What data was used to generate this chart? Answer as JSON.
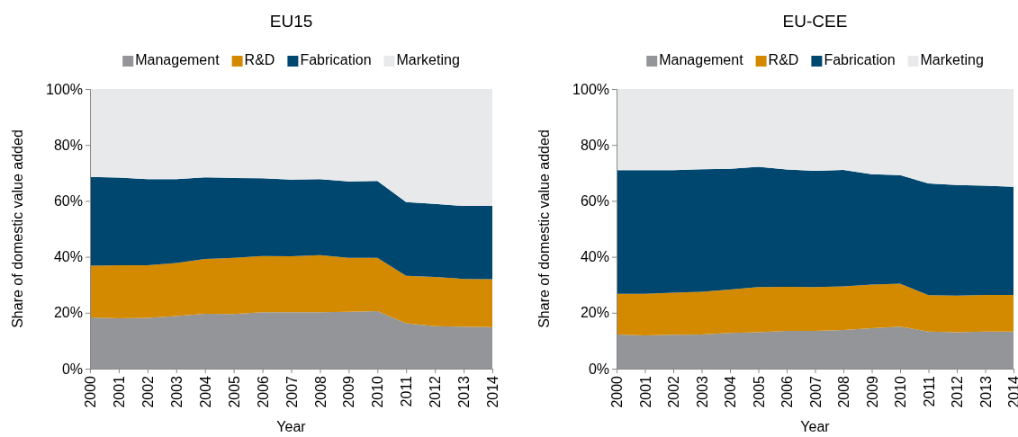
{
  "chart_data": [
    {
      "type": "area",
      "title": "EU15",
      "xlabel": "Year",
      "ylabel": "Share of domestic value added",
      "stacked": true,
      "legend": "top",
      "grid": false,
      "categories": [
        "2000",
        "2001",
        "2002",
        "2003",
        "2004",
        "2005",
        "2006",
        "2007",
        "2008",
        "2009",
        "2010",
        "2011",
        "2012",
        "2013",
        "2014"
      ],
      "ylim": [
        0,
        100
      ],
      "yticks": [
        {
          "value": 0,
          "label": "0%"
        },
        {
          "value": 20,
          "label": "20%"
        },
        {
          "value": 40,
          "label": "40%"
        },
        {
          "value": 60,
          "label": "60%"
        },
        {
          "value": 80,
          "label": "80%"
        },
        {
          "value": 100,
          "label": "100%"
        }
      ],
      "series": [
        {
          "name": "Management",
          "color": "#939598",
          "values": [
            18.3,
            18,
            18.2,
            18.8,
            19.6,
            19.5,
            20.2,
            20.2,
            20.2,
            20.3,
            20.6,
            16.2,
            15.2,
            15,
            14.9
          ]
        },
        {
          "name": "R&D",
          "color": "#d48a00",
          "values": [
            18.5,
            19,
            18.8,
            19,
            19.6,
            20.1,
            20.1,
            20,
            20.4,
            19.3,
            19,
            17,
            17.6,
            17.1,
            17.1
          ]
        },
        {
          "name": "Fabrication",
          "color": "#00476f",
          "values": [
            31.8,
            31.3,
            30.8,
            30,
            29.2,
            28.6,
            27.8,
            27.4,
            27.2,
            27.4,
            27.5,
            26.4,
            26.1,
            26.1,
            26.2
          ]
        },
        {
          "name": "Marketing",
          "color": "#e8e9eb",
          "values": [
            31.4,
            31.7,
            32.2,
            32.2,
            31.6,
            31.8,
            31.9,
            32.4,
            32.2,
            33,
            32.9,
            40.4,
            41.1,
            41.8,
            41.8
          ]
        }
      ]
    },
    {
      "type": "area",
      "title": "EU-CEE",
      "xlabel": "Year",
      "ylabel": "Share of domestic value added",
      "stacked": true,
      "legend": "top",
      "grid": false,
      "categories": [
        "2000",
        "2001",
        "2002",
        "2003",
        "2004",
        "2005",
        "2006",
        "2007",
        "2008",
        "2009",
        "2010",
        "2011",
        "2012",
        "2013",
        "2014"
      ],
      "ylim": [
        0,
        100
      ],
      "yticks": [
        {
          "value": 0,
          "label": "0%"
        },
        {
          "value": 20,
          "label": "20%"
        },
        {
          "value": 40,
          "label": "40%"
        },
        {
          "value": 60,
          "label": "60%"
        },
        {
          "value": 80,
          "label": "80%"
        },
        {
          "value": 100,
          "label": "100%"
        }
      ],
      "series": [
        {
          "name": "Management",
          "color": "#939598",
          "values": [
            12.2,
            11.9,
            12.1,
            12.2,
            12.8,
            13,
            13.5,
            13.5,
            13.8,
            14.5,
            15,
            13.3,
            13,
            13.3,
            13.3
          ]
        },
        {
          "name": "R&D",
          "color": "#d48a00",
          "values": [
            14.6,
            14.9,
            15.1,
            15.3,
            15.5,
            16.2,
            15.8,
            15.7,
            15.6,
            15.6,
            15.4,
            13,
            13.1,
            13.1,
            13.1
          ]
        },
        {
          "name": "Fabrication",
          "color": "#00476f",
          "values": [
            44.2,
            44.2,
            43.8,
            43.8,
            43.2,
            43,
            41.9,
            41.5,
            41.7,
            39.4,
            38.8,
            39.9,
            39.6,
            39,
            38.6
          ]
        },
        {
          "name": "Marketing",
          "color": "#e8e9eb",
          "values": [
            29,
            29,
            29,
            28.7,
            28.5,
            27.8,
            28.8,
            29.3,
            28.9,
            30.5,
            30.8,
            33.8,
            34.3,
            34.6,
            35
          ]
        }
      ]
    }
  ]
}
